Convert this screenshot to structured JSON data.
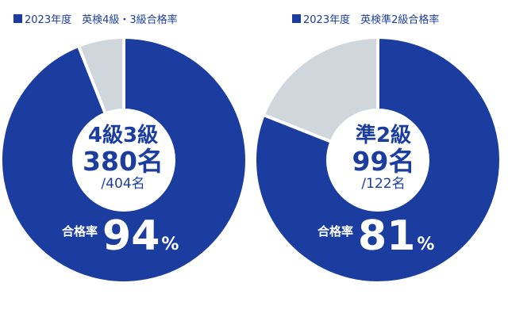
{
  "colors": {
    "pass": "#1b3d9f",
    "rest": "#cfd6dc",
    "center": "#ffffff",
    "text": "#1b3d9f"
  },
  "chart_data": [
    {
      "type": "pie",
      "legend": "2023年度　英検4級・3級合格率",
      "values": [
        94,
        6
      ],
      "center": {
        "name": "4級3級",
        "value": "380名",
        "total": "/404名"
      },
      "rate": {
        "label": "合格率",
        "value": "94",
        "unit": "%"
      }
    },
    {
      "type": "pie",
      "legend": "2023年度　英検準2級合格率",
      "values": [
        81,
        19
      ],
      "center": {
        "name": "準2級",
        "value": "99名",
        "total": "/122名"
      },
      "rate": {
        "label": "合格率",
        "value": "81",
        "unit": "%"
      }
    }
  ]
}
